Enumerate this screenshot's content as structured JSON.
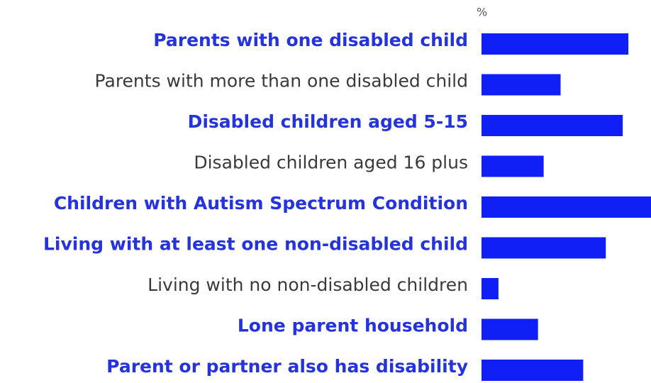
{
  "chart_data": {
    "type": "bar",
    "orientation": "horizontal",
    "unit_label": "%",
    "categories": [
      "Parents with one disabled child",
      "Parents with more than one disabled  child",
      "Disabled children aged 5-15",
      "Disabled children aged 16 plus",
      "Children with Autism Spectrum Condition",
      "Living with at least one non-disabled child",
      "Living with no non-disabled children",
      "Lone parent household",
      "Parent or partner also has disability"
    ],
    "values": [
      26,
      14,
      25,
      11,
      30,
      22,
      3,
      10,
      18
    ],
    "highlight": [
      true,
      false,
      true,
      false,
      true,
      true,
      false,
      true,
      true
    ],
    "color": "#0f1ff5",
    "xlim": [
      0,
      30
    ]
  }
}
